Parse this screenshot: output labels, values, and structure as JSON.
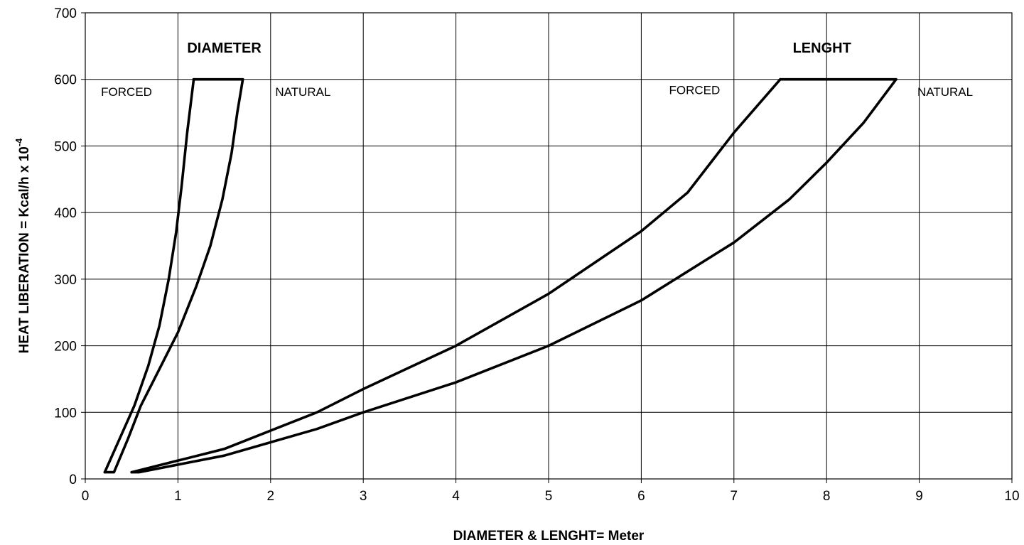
{
  "chart_data": {
    "type": "line",
    "xlabel": "DIAMETER & LENGHT= Meter",
    "ylabel": {
      "base": "HEAT LIBERATION = Kcal/h x 10",
      "exponent": "-4"
    },
    "xlim": [
      0,
      10
    ],
    "ylim": [
      0,
      700
    ],
    "x_ticks": [
      "0",
      "1",
      "2",
      "3",
      "4",
      "5",
      "6",
      "7",
      "8",
      "9",
      "10"
    ],
    "y_ticks": [
      "0",
      "100",
      "200",
      "300",
      "400",
      "500",
      "600",
      "700"
    ],
    "grid": true,
    "group_labels": [
      {
        "text": "DIAMETER",
        "x": 1.5,
        "y": 640
      },
      {
        "text": "LENGHT",
        "x": 7.95,
        "y": 640
      }
    ],
    "mode_labels": [
      {
        "text": "FORCED",
        "x": 0.17,
        "y": 575
      },
      {
        "text": "NATURAL",
        "x": 2.05,
        "y": 575
      },
      {
        "text": "FORCED",
        "x": 6.3,
        "y": 578
      },
      {
        "text": "NATURAL",
        "x": 8.98,
        "y": 575
      }
    ],
    "series": [
      {
        "points": [
          [
            0.21,
            10
          ],
          [
            0.31,
            10
          ],
          [
            0.46,
            60
          ],
          [
            0.6,
            110
          ],
          [
            0.8,
            165
          ],
          [
            1.0,
            220
          ],
          [
            1.2,
            290
          ],
          [
            1.35,
            350
          ],
          [
            1.48,
            420
          ],
          [
            1.58,
            490
          ],
          [
            1.64,
            550
          ],
          [
            1.7,
            600
          ]
        ]
      },
      {
        "points": [
          [
            0.21,
            10
          ],
          [
            0.37,
            60
          ],
          [
            0.53,
            110
          ],
          [
            0.68,
            170
          ],
          [
            0.8,
            230
          ],
          [
            0.9,
            300
          ],
          [
            0.98,
            370
          ],
          [
            1.04,
            440
          ],
          [
            1.1,
            520
          ],
          [
            1.17,
            600
          ]
        ]
      },
      {
        "points": [
          [
            1.17,
            600
          ],
          [
            1.7,
            600
          ]
        ]
      },
      {
        "points": [
          [
            0.5,
            10
          ],
          [
            0.58,
            10
          ],
          [
            1.5,
            35
          ],
          [
            2.5,
            75
          ],
          [
            3.0,
            100
          ],
          [
            4.0,
            145
          ],
          [
            5.0,
            200
          ],
          [
            6.0,
            268
          ],
          [
            7.0,
            355
          ],
          [
            7.6,
            420
          ],
          [
            8.0,
            475
          ],
          [
            8.4,
            535
          ],
          [
            8.75,
            600
          ]
        ]
      },
      {
        "points": [
          [
            0.5,
            10
          ],
          [
            1.5,
            45
          ],
          [
            2.5,
            100
          ],
          [
            3.0,
            135
          ],
          [
            4.0,
            200
          ],
          [
            5.0,
            278
          ],
          [
            6.0,
            372
          ],
          [
            6.5,
            430
          ],
          [
            7.0,
            520
          ],
          [
            7.5,
            600
          ]
        ]
      },
      {
        "points": [
          [
            7.5,
            600
          ],
          [
            8.75,
            600
          ]
        ]
      }
    ]
  }
}
